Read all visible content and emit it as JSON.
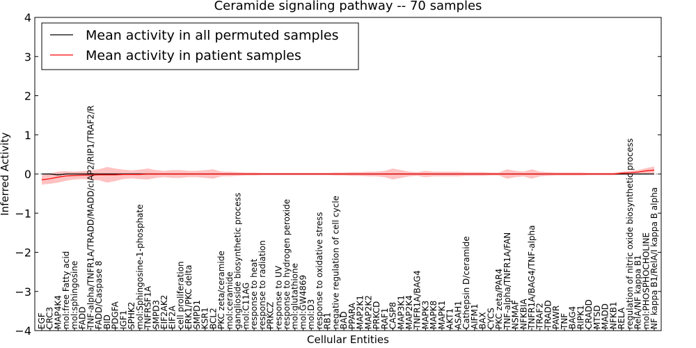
{
  "chart_data": {
    "type": "line",
    "title": "Ceramide signaling pathway -- 70 samples",
    "xlabel": "Cellular Entities",
    "ylabel": "Inferred Activity",
    "ylim": [
      -4,
      4
    ],
    "yticks": [
      -4,
      -3,
      -2,
      -1,
      0,
      1,
      2,
      3,
      4
    ],
    "legend_position": "top-left",
    "colors": {
      "permuted": "#000000",
      "patient": "#ff0000",
      "permuted_band": "#cccccc",
      "patient_band": "#ff9999"
    },
    "categories": [
      "EGF",
      "CRC3",
      "MAP4K4",
      "mol:free Fatty acid",
      "mol:sphingosine",
      "FADD",
      "TNF-alpha/TNFR1A/TRADD/MADD/cIAP2/RIP1/TRAF2/R",
      "FADD/Caspase 8",
      "BID",
      "PDGFA",
      "IGF1",
      "SPHK2",
      "mol:Sphingosine-1-phosphate",
      "TNFRSF1A",
      "SMPD3",
      "EIF2AK2",
      "EIF2A",
      "cell proliferation",
      "ERK1/PKC delta",
      "SMPD1",
      "KSR1",
      "BCL2",
      "PKC zeta/ceramide",
      "mol:ceramide",
      "ganglioside biosynthetic process",
      "mol:C11AG",
      "response to heat",
      "response to radiation",
      "PRKCZ",
      "response to UV",
      "response to hydrogen peroxide",
      "mol:glutathione",
      "mol:GW4869",
      "mol:D3",
      "response to oxidative stress",
      "RB1",
      "negative regulation of cell cycle",
      "BAD",
      "PPARA",
      "MAP2K1",
      "MAP2K2",
      "PRKCD",
      "RAF1",
      "CASP8",
      "MAP3K1",
      "MAP2K4",
      "TNFR1A/BAG4",
      "MAPK3",
      "MAPK8",
      "MAPK1",
      "AKT1",
      "ASAH1",
      "Cathepsin D/ceramide",
      "AIFM1",
      "BAX",
      "CYCS",
      "PKC zeta/PAR4",
      "TNF-alpha/TNFR1A/FAN",
      "NSMAF",
      "NFKBIA",
      "TNFR1A/BAG4/TNF-alpha",
      "TRAF2",
      "TRADD",
      "PAWR",
      "TNF",
      "BAG4",
      "RIPK1",
      "CRADD",
      "MTSD",
      "MADD",
      "NFKB1",
      "RELA",
      "regulation of nitric oxide biosynthetic process",
      "RelA/NF kappa B1",
      "mol:PHOSPHOCHOLINE",
      "NF kappa B1/RelA/I kappa B alpha"
    ],
    "series": [
      {
        "name": "Mean activity in all permuted samples",
        "color": "#000000",
        "values": [
          0.0,
          0.0,
          -0.02,
          0.0,
          0.0,
          0.0,
          0.0,
          0.0,
          0.0,
          0.0,
          0.0,
          0.0,
          0.0,
          0.0,
          0.0,
          0.0,
          0.0,
          0.0,
          0.0,
          0.0,
          0.0,
          0.0,
          0.0,
          0.0,
          0.0,
          0.0,
          0.0,
          0.0,
          0.0,
          0.0,
          0.0,
          0.0,
          0.0,
          0.0,
          0.0,
          0.0,
          0.0,
          0.0,
          0.0,
          0.0,
          0.0,
          0.0,
          0.0,
          0.0,
          0.0,
          0.0,
          0.0,
          0.0,
          0.0,
          0.0,
          0.0,
          0.0,
          0.0,
          0.0,
          0.0,
          0.0,
          0.0,
          0.0,
          0.0,
          0.0,
          0.0,
          0.0,
          0.0,
          0.0,
          0.0,
          0.0,
          0.0,
          0.0,
          0.0,
          0.0,
          0.0,
          0.0,
          0.0,
          0.0,
          0.0,
          0.0
        ],
        "spread": [
          0.02,
          0.03,
          0.04,
          0.03,
          0.04,
          0.04,
          0.04,
          0.03,
          0.03,
          0.03,
          0.02,
          0.02,
          0.03,
          0.03,
          0.03,
          0.02,
          0.02,
          0.02,
          0.02,
          0.02,
          0.02,
          0.02,
          0.02,
          0.02,
          0.02,
          0.02,
          0.02,
          0.02,
          0.02,
          0.02,
          0.02,
          0.02,
          0.02,
          0.02,
          0.02,
          0.02,
          0.02,
          0.02,
          0.02,
          0.02,
          0.02,
          0.02,
          0.02,
          0.02,
          0.02,
          0.02,
          0.02,
          0.02,
          0.02,
          0.02,
          0.02,
          0.02,
          0.02,
          0.02,
          0.02,
          0.02,
          0.02,
          0.02,
          0.02,
          0.02,
          0.02,
          0.02,
          0.02,
          0.02,
          0.02,
          0.02,
          0.02,
          0.02,
          0.02,
          0.02,
          0.02,
          0.02,
          0.02,
          0.02,
          0.02,
          0.02
        ]
      },
      {
        "name": "Mean activity in patient samples",
        "color": "#ff0000",
        "values": [
          -0.15,
          -0.12,
          -0.08,
          -0.05,
          -0.04,
          -0.03,
          -0.03,
          -0.02,
          -0.02,
          -0.02,
          -0.01,
          -0.01,
          -0.01,
          0.0,
          0.0,
          0.0,
          0.0,
          0.0,
          0.0,
          0.0,
          0.0,
          0.0,
          0.0,
          0.0,
          0.0,
          0.0,
          0.0,
          0.0,
          0.0,
          0.0,
          0.0,
          0.0,
          0.0,
          0.0,
          0.0,
          0.0,
          0.0,
          0.0,
          0.0,
          0.0,
          0.0,
          0.0,
          0.0,
          0.0,
          0.0,
          0.0,
          0.0,
          0.0,
          0.0,
          0.0,
          0.0,
          0.0,
          0.0,
          0.0,
          0.0,
          0.0,
          0.0,
          0.0,
          0.0,
          0.0,
          0.0,
          0.0,
          0.0,
          0.0,
          0.0,
          0.0,
          0.0,
          0.0,
          0.0,
          0.0,
          0.0,
          0.02,
          0.03,
          0.05,
          0.08,
          0.1
        ],
        "spread": [
          0.12,
          0.13,
          0.14,
          0.12,
          0.1,
          0.1,
          0.12,
          0.14,
          0.2,
          0.16,
          0.12,
          0.1,
          0.12,
          0.14,
          0.1,
          0.08,
          0.1,
          0.1,
          0.08,
          0.08,
          0.1,
          0.12,
          0.06,
          0.06,
          0.05,
          0.04,
          0.04,
          0.03,
          0.03,
          0.03,
          0.03,
          0.03,
          0.03,
          0.03,
          0.03,
          0.03,
          0.04,
          0.04,
          0.05,
          0.05,
          0.06,
          0.06,
          0.08,
          0.14,
          0.1,
          0.06,
          0.05,
          0.08,
          0.06,
          0.06,
          0.06,
          0.06,
          0.05,
          0.05,
          0.05,
          0.04,
          0.04,
          0.12,
          0.08,
          0.06,
          0.12,
          0.06,
          0.05,
          0.04,
          0.04,
          0.04,
          0.04,
          0.03,
          0.03,
          0.03,
          0.03,
          0.04,
          0.05,
          0.05,
          0.07,
          0.09
        ]
      }
    ]
  }
}
